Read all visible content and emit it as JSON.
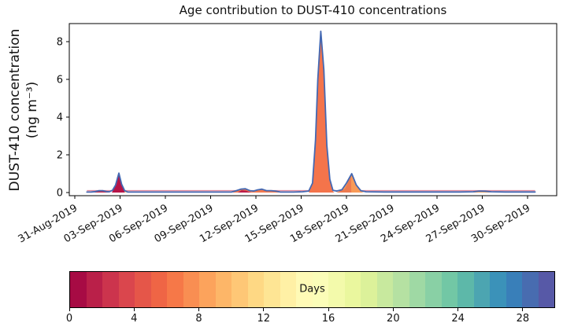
{
  "chart_data": {
    "type": "area",
    "title": "Age contribution to DUST-410 concentrations",
    "ylabel": "DUST-410 concentration (ng m⁻³)",
    "ylabel_line1": "DUST-410 concentration",
    "ylabel_line2": "(ng m⁻³)",
    "xlabel": "",
    "grid": false,
    "legend": "none",
    "x_unit": "days since 31-Aug-2019",
    "xlim_days": [
      -0.4,
      31.9
    ],
    "ylim": [
      -0.17,
      8.95
    ],
    "y_ticks": [
      0,
      2,
      4,
      6,
      8
    ],
    "x_ticks": [
      {
        "day": 0,
        "label": "31-Aug-2019"
      },
      {
        "day": 3,
        "label": "03-Sep-2019"
      },
      {
        "day": 6,
        "label": "06-Sep-2019"
      },
      {
        "day": 9,
        "label": "09-Sep-2019"
      },
      {
        "day": 12,
        "label": "12-Sep-2019"
      },
      {
        "day": 15,
        "label": "15-Sep-2019"
      },
      {
        "day": 18,
        "label": "18-Sep-2019"
      },
      {
        "day": 21,
        "label": "21-Sep-2019"
      },
      {
        "day": 24,
        "label": "24-Sep-2019"
      },
      {
        "day": 27,
        "label": "27-Sep-2019"
      },
      {
        "day": 30,
        "label": "30-Sep-2019"
      }
    ],
    "total_line": {
      "color": "#4468b2",
      "points": [
        [
          0.8,
          0.025
        ],
        [
          1.1,
          0.03
        ],
        [
          1.35,
          0.05
        ],
        [
          1.6,
          0.1
        ],
        [
          1.85,
          0.1
        ],
        [
          2.1,
          0.05
        ],
        [
          2.3,
          0.04
        ],
        [
          2.5,
          0.12
        ],
        [
          2.7,
          0.4
        ],
        [
          2.92,
          1.03
        ],
        [
          3.1,
          0.45
        ],
        [
          3.3,
          0.1
        ],
        [
          3.5,
          0.03
        ],
        [
          4.5,
          0.025
        ],
        [
          6,
          0.025
        ],
        [
          8,
          0.025
        ],
        [
          9.5,
          0.025
        ],
        [
          10.4,
          0.03
        ],
        [
          10.7,
          0.1
        ],
        [
          11.0,
          0.18
        ],
        [
          11.3,
          0.2
        ],
        [
          11.6,
          0.1
        ],
        [
          11.85,
          0.08
        ],
        [
          12.1,
          0.14
        ],
        [
          12.4,
          0.18
        ],
        [
          12.7,
          0.1
        ],
        [
          13.0,
          0.1
        ],
        [
          13.3,
          0.08
        ],
        [
          13.6,
          0.03
        ],
        [
          14.5,
          0.025
        ],
        [
          15.1,
          0.04
        ],
        [
          15.5,
          0.08
        ],
        [
          15.75,
          0.5
        ],
        [
          15.95,
          2.8
        ],
        [
          16.1,
          6.0
        ],
        [
          16.3,
          8.55
        ],
        [
          16.5,
          6.5
        ],
        [
          16.7,
          2.5
        ],
        [
          16.9,
          0.7
        ],
        [
          17.1,
          0.12
        ],
        [
          17.35,
          0.08
        ],
        [
          17.7,
          0.15
        ],
        [
          18.0,
          0.5
        ],
        [
          18.35,
          1.0
        ],
        [
          18.65,
          0.4
        ],
        [
          18.95,
          0.1
        ],
        [
          19.3,
          0.04
        ],
        [
          20.5,
          0.03
        ],
        [
          22,
          0.03
        ],
        [
          24,
          0.03
        ],
        [
          25.5,
          0.03
        ],
        [
          26.4,
          0.04
        ],
        [
          26.8,
          0.08
        ],
        [
          27.2,
          0.07
        ],
        [
          27.6,
          0.04
        ],
        [
          28.5,
          0.03
        ],
        [
          29.5,
          0.03
        ],
        [
          30.5,
          0.03
        ]
      ]
    },
    "reference_line": {
      "color": "#e08b9e",
      "value": 0.1,
      "x_start": 0.8,
      "x_end": 30.5
    },
    "areas": [
      {
        "name": "early-red-bump",
        "color": "#c22c4e",
        "points": [
          [
            1.25,
            0
          ],
          [
            1.6,
            0.08
          ],
          [
            1.9,
            0.08
          ],
          [
            2.2,
            0.02
          ],
          [
            2.35,
            0
          ]
        ]
      },
      {
        "name": "yellow-sliver",
        "color": "#fee08b",
        "points": [
          [
            2.85,
            0
          ],
          [
            3.15,
            0.18
          ],
          [
            3.55,
            0
          ]
        ]
      },
      {
        "name": "crimson-peak-03sep",
        "color": "#b61447",
        "points": [
          [
            2.45,
            0
          ],
          [
            2.7,
            0.35
          ],
          [
            2.92,
            1.0
          ],
          [
            3.12,
            0.4
          ],
          [
            3.32,
            0
          ]
        ]
      },
      {
        "name": "bumps-11-13sep",
        "color": "#f2784e",
        "points": [
          [
            10.45,
            0
          ],
          [
            10.8,
            0.13
          ],
          [
            11.1,
            0.18
          ],
          [
            11.3,
            0.18
          ],
          [
            11.65,
            0.06
          ],
          [
            11.9,
            0.05
          ],
          [
            12.15,
            0.13
          ],
          [
            12.45,
            0.16
          ],
          [
            12.75,
            0.07
          ],
          [
            13.05,
            0.08
          ],
          [
            13.35,
            0.06
          ],
          [
            13.65,
            0
          ]
        ]
      },
      {
        "name": "bump-red-sliver",
        "color": "#bb1b49",
        "points": [
          [
            10.8,
            0
          ],
          [
            11.05,
            0.12
          ],
          [
            11.35,
            0.1
          ],
          [
            11.55,
            0.03
          ],
          [
            11.7,
            0
          ]
        ]
      },
      {
        "name": "main-peak-16sep",
        "color": "#f4744b",
        "points": [
          [
            15.5,
            0
          ],
          [
            15.75,
            0.45
          ],
          [
            15.95,
            2.7
          ],
          [
            16.1,
            5.9
          ],
          [
            16.3,
            8.5
          ],
          [
            16.5,
            6.4
          ],
          [
            16.7,
            2.4
          ],
          [
            16.9,
            0.6
          ],
          [
            17.12,
            0.05
          ],
          [
            17.2,
            0
          ]
        ]
      },
      {
        "name": "secondary-peak-18sep",
        "color": "#f89a57",
        "points": [
          [
            17.3,
            0
          ],
          [
            17.7,
            0.12
          ],
          [
            18.0,
            0.45
          ],
          [
            18.35,
            0.97
          ],
          [
            18.65,
            0.35
          ],
          [
            18.95,
            0.07
          ],
          [
            19.15,
            0
          ]
        ]
      },
      {
        "name": "secondary-dark-wedge",
        "color": "#ec7a50",
        "points": [
          [
            17.35,
            0
          ],
          [
            17.9,
            0.2
          ],
          [
            18.3,
            0.9
          ],
          [
            18.32,
            0
          ]
        ]
      },
      {
        "name": "late-bump-27sep",
        "color": "#f5a55e",
        "points": [
          [
            26.3,
            0
          ],
          [
            26.75,
            0.06
          ],
          [
            27.2,
            0.06
          ],
          [
            27.6,
            0
          ]
        ]
      }
    ],
    "colorbar": {
      "label": "Days",
      "min": 0,
      "max": 30,
      "segments": 30,
      "ticks": [
        0,
        4,
        8,
        12,
        16,
        20,
        24,
        28
      ],
      "colormap": "Spectral",
      "colormap_stops": [
        [
          0.0,
          "#9e0142"
        ],
        [
          0.1,
          "#d53e4f"
        ],
        [
          0.2,
          "#f46d43"
        ],
        [
          0.3,
          "#fdae61"
        ],
        [
          0.4,
          "#fee08b"
        ],
        [
          0.5,
          "#ffffbf"
        ],
        [
          0.6,
          "#e6f598"
        ],
        [
          0.7,
          "#abdda4"
        ],
        [
          0.8,
          "#66c2a5"
        ],
        [
          0.9,
          "#3288bd"
        ],
        [
          1.0,
          "#5e4fa2"
        ]
      ]
    },
    "colors": {
      "spine": "#000000",
      "background": "#ffffff",
      "text": "#111111"
    }
  }
}
